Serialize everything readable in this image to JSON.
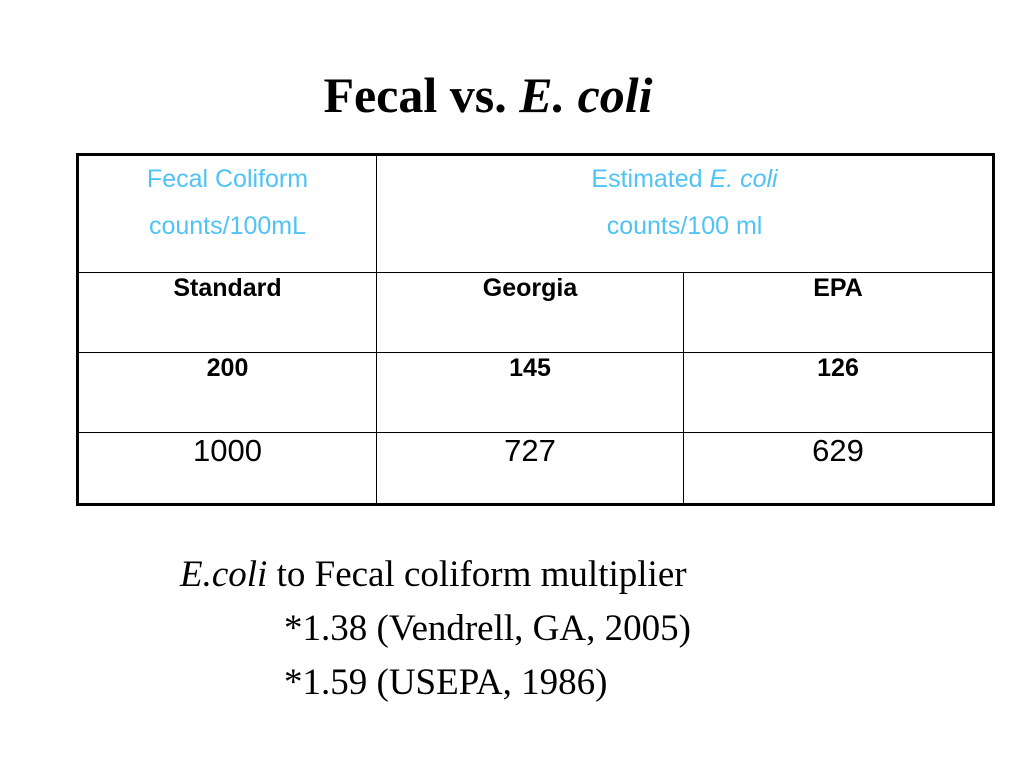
{
  "title": {
    "prefix": "Fecal vs. ",
    "italic": "E. coli"
  },
  "table": {
    "header": {
      "fecal_line1": "Fecal Coliform",
      "fecal_line2": "counts/100mL",
      "estimated_prefix": "Estimated ",
      "estimated_italic": "E. coli",
      "estimated_line2": "counts/100 ml"
    },
    "columns": [
      "Standard",
      "Georgia",
      "EPA"
    ],
    "rows": [
      [
        "200",
        "145",
        "126"
      ],
      [
        "1000",
        "727",
        "629"
      ]
    ]
  },
  "note": {
    "italic": "E.coli",
    "text": " to Fecal coliform multiplier",
    "lines": [
      "*1.38 (Vendrell, GA, 2005)",
      "*1.59 (USEPA, 1986)"
    ]
  },
  "colors": {
    "header_text": "#4fc3f7",
    "text": "#000000",
    "background": "#ffffff"
  }
}
